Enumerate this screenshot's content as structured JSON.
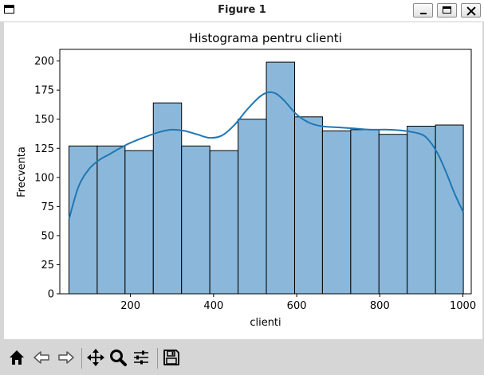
{
  "window": {
    "title": "Figure 1"
  },
  "chart_data": {
    "type": "bar",
    "subtype": "histogram-with-kde",
    "title": "Histograma pentru clienti",
    "xlabel": "clienti",
    "ylabel": "Frecventa",
    "xlim": [
      30,
      1020
    ],
    "ylim": [
      0,
      210
    ],
    "xticks": [
      200,
      400,
      600,
      800,
      1000
    ],
    "yticks": [
      0,
      25,
      50,
      75,
      100,
      125,
      150,
      175,
      200
    ],
    "grid": false,
    "bar_color": "#8bb8da",
    "bar_edge_color": "#000000",
    "kde_color": "#1f77b4",
    "bins": [
      {
        "x0": 52,
        "x1": 120,
        "count": 127
      },
      {
        "x0": 120,
        "x1": 187,
        "count": 127
      },
      {
        "x0": 187,
        "x1": 255,
        "count": 123
      },
      {
        "x0": 255,
        "x1": 323,
        "count": 164
      },
      {
        "x0": 323,
        "x1": 391,
        "count": 127
      },
      {
        "x0": 391,
        "x1": 459,
        "count": 123
      },
      {
        "x0": 459,
        "x1": 527,
        "count": 150
      },
      {
        "x0": 527,
        "x1": 595,
        "count": 199
      },
      {
        "x0": 595,
        "x1": 662,
        "count": 152
      },
      {
        "x0": 662,
        "x1": 730,
        "count": 140
      },
      {
        "x0": 730,
        "x1": 798,
        "count": 141
      },
      {
        "x0": 798,
        "x1": 866,
        "count": 137
      },
      {
        "x0": 866,
        "x1": 934,
        "count": 144
      },
      {
        "x0": 934,
        "x1": 1001,
        "count": 145
      }
    ],
    "kde": {
      "x": [
        52,
        75,
        100,
        125,
        150,
        190,
        230,
        270,
        300,
        330,
        360,
        390,
        420,
        450,
        480,
        510,
        530,
        550,
        570,
        600,
        630,
        660,
        700,
        740,
        780,
        820,
        860,
        900,
        920,
        940,
        960,
        980,
        1001
      ],
      "y": [
        64,
        92,
        107,
        115,
        120,
        128,
        134,
        139,
        141,
        140,
        137,
        134,
        136,
        145,
        158,
        169,
        173,
        172,
        166,
        154,
        147,
        144,
        143,
        142,
        141,
        141,
        140,
        137,
        131,
        120,
        104,
        86,
        70
      ]
    }
  },
  "toolbar": {
    "items": [
      {
        "name": "home-button",
        "icon": "home-icon"
      },
      {
        "name": "back-button",
        "icon": "arrow-left-icon"
      },
      {
        "name": "forward-button",
        "icon": "arrow-right-icon"
      },
      {
        "name": "pan-button",
        "icon": "move-icon"
      },
      {
        "name": "zoom-button",
        "icon": "magnifier-icon"
      },
      {
        "name": "configure-subplots-button",
        "icon": "sliders-icon"
      },
      {
        "name": "save-button",
        "icon": "floppy-disk-icon"
      }
    ]
  }
}
